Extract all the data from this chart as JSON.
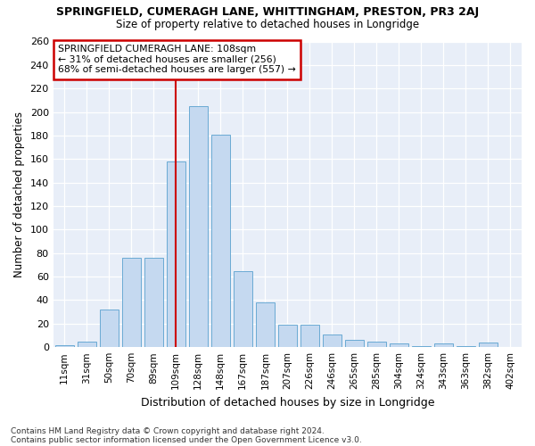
{
  "title": "SPRINGFIELD, CUMERAGH LANE, WHITTINGHAM, PRESTON, PR3 2AJ",
  "subtitle": "Size of property relative to detached houses in Longridge",
  "xlabel": "Distribution of detached houses by size in Longridge",
  "ylabel": "Number of detached properties",
  "footnote1": "Contains HM Land Registry data © Crown copyright and database right 2024.",
  "footnote2": "Contains public sector information licensed under the Open Government Licence v3.0.",
  "annotation_line1": "SPRINGFIELD CUMERAGH LANE: 108sqm",
  "annotation_line2": "← 31% of detached houses are smaller (256)",
  "annotation_line3": "68% of semi-detached houses are larger (557) →",
  "bar_labels": [
    "11sqm",
    "31sqm",
    "50sqm",
    "70sqm",
    "89sqm",
    "109sqm",
    "128sqm",
    "148sqm",
    "167sqm",
    "187sqm",
    "207sqm",
    "226sqm",
    "246sqm",
    "265sqm",
    "285sqm",
    "304sqm",
    "324sqm",
    "343sqm",
    "363sqm",
    "382sqm",
    "402sqm"
  ],
  "bar_values": [
    2,
    5,
    32,
    76,
    76,
    158,
    205,
    181,
    65,
    38,
    19,
    19,
    11,
    6,
    5,
    3,
    1,
    3,
    1,
    4,
    0
  ],
  "bar_color": "#c5d9f0",
  "bar_edge_color": "#6aaad4",
  "vline_color": "#cc0000",
  "highlight_index": 5,
  "bg_color": "#e8eef8",
  "grid_color": "#ffffff",
  "annotation_box_color": "#ffffff",
  "annotation_box_edge": "#cc0000",
  "fig_bg_color": "#ffffff",
  "ylim": [
    0,
    260
  ],
  "yticks": [
    0,
    20,
    40,
    60,
    80,
    100,
    120,
    140,
    160,
    180,
    200,
    220,
    240,
    260
  ]
}
